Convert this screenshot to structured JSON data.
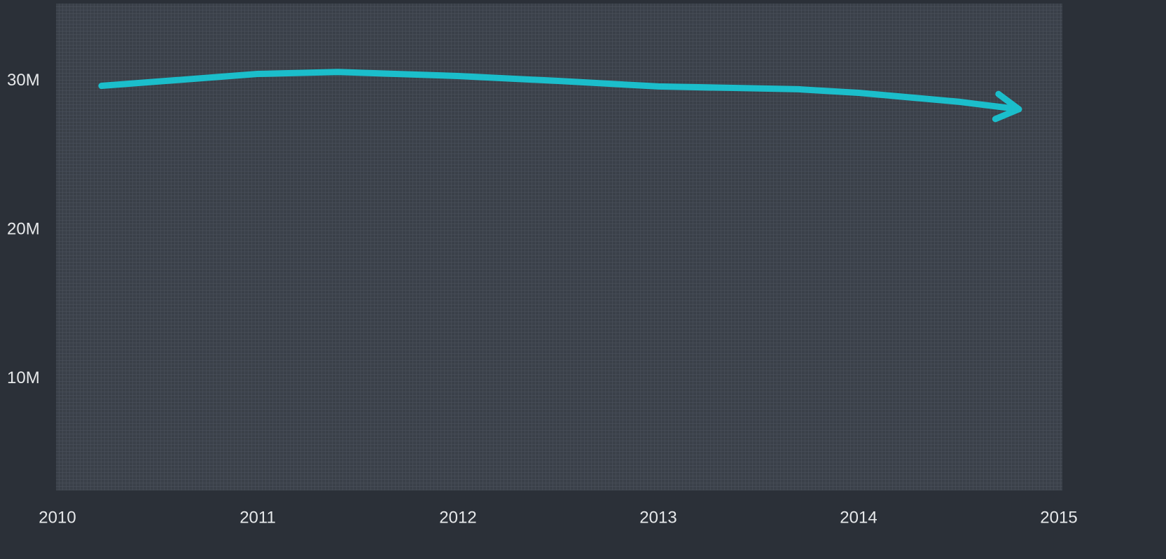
{
  "chart_data": {
    "type": "line",
    "x": [
      2010.22,
      2011,
      2011.4,
      2012,
      2012.5,
      2013,
      2013.7,
      2014,
      2014.5,
      2014.8
    ],
    "series": [
      {
        "color": "#1bbecb",
        "values": [
          29670000,
          30470000,
          30600000,
          30330000,
          30000000,
          29630000,
          29440000,
          29200000,
          28600000,
          28100000
        ]
      }
    ],
    "xlim": [
      2010,
      2015
    ],
    "xticks": [
      2010,
      2011,
      2012,
      2013,
      2014,
      2015
    ],
    "ylim": [
      2500000,
      35200000
    ],
    "yticks": [
      {
        "value": 10000000,
        "label": "10M"
      },
      {
        "value": 20000000,
        "label": "20M"
      },
      {
        "value": 30000000,
        "label": "30M"
      }
    ]
  }
}
